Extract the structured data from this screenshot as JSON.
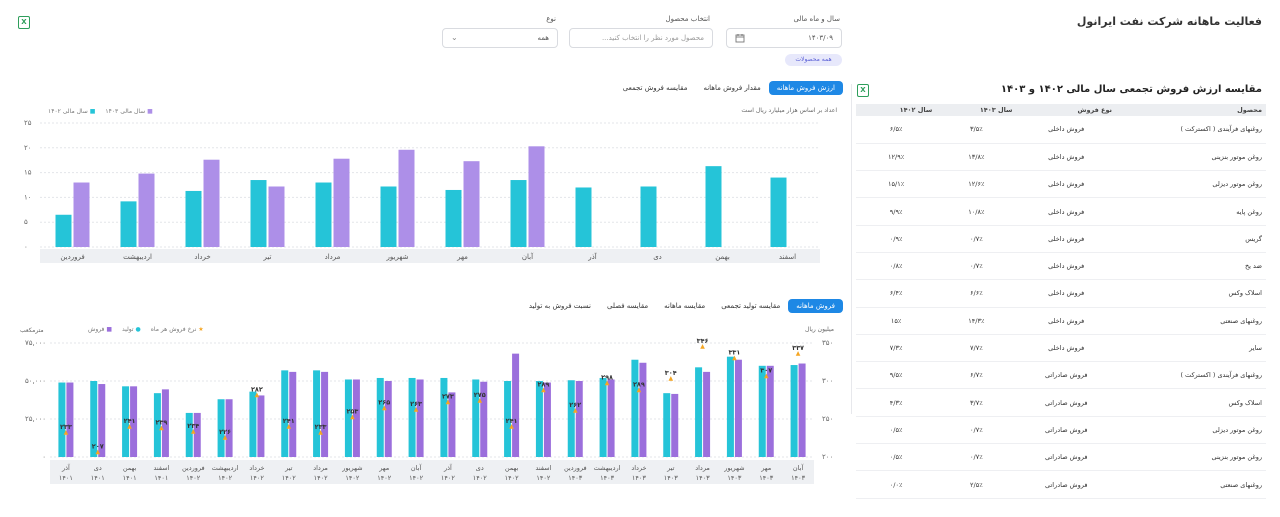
{
  "header": {
    "title": "فعالیت ماهانه شرکت نفت ایرانول",
    "export_icon": "excel-icon"
  },
  "filters": {
    "period_label": "سال و ماه مالی",
    "period_value": "۱۴۰۳/۰۹",
    "product_label": "انتخاب محصول",
    "product_placeholder": "محصول مورد نظر را انتخاب کنید...",
    "type_label": "نوع",
    "type_value": "همه",
    "chip": "همه محصولات"
  },
  "chart1": {
    "tabs": [
      "ارزش فروش ماهانه",
      "مقدار فروش ماهانه",
      "مقایسه فروش تجمعی"
    ],
    "unit": "اعداد بر اساس هزار میلیارد ریال است",
    "legend": [
      "سال مالی ۱۴۰۳",
      "سال مالی ۱۴۰۲"
    ],
    "colors": {
      "y1403": "#ad8fe8",
      "y1402": "#25c4d8"
    }
  },
  "chart2": {
    "tabs": [
      "فروش ماهانه",
      "مقایسه تولید تجمعی",
      "مقایسه ماهانه",
      "مقایسه فصلی",
      "نسبت فروش به تولید"
    ],
    "left_unit": "مترمکعب",
    "right_unit": "میلیون ریال",
    "legend": [
      "فروش",
      "تولید",
      "نرخ فروش هر ماه"
    ],
    "colors": {
      "sales": "#9b6fdc",
      "production": "#25c4d8",
      "rate": "#f5a623"
    }
  },
  "chart_data": [
    {
      "type": "bar",
      "title": "",
      "categories": [
        "اسفند",
        "بهمن",
        "دی",
        "آذر",
        "آبان",
        "مهر",
        "شهریور",
        "مرداد",
        "تیر",
        "خرداد",
        "اردیبهشت",
        "فروردین"
      ],
      "series": [
        {
          "name": "سال مالی ۱۴۰۲",
          "values": [
            14,
            16.3,
            12.2,
            12,
            13.5,
            11.5,
            12.2,
            13,
            13.5,
            11.3,
            9.2,
            6.5
          ]
        },
        {
          "name": "سال مالی ۱۴۰۳",
          "values": [
            null,
            null,
            null,
            null,
            20.3,
            17.3,
            19.6,
            17.8,
            12.2,
            17.6,
            14.8,
            13
          ]
        }
      ],
      "ylim": [
        0,
        25
      ],
      "yticks": [
        0,
        5,
        10,
        15,
        20,
        25
      ],
      "ytick_labels": [
        "۰",
        "۵",
        "۱۰",
        "۱۵",
        "۲۰",
        "۲۵"
      ]
    },
    {
      "type": "bar",
      "title": "",
      "categories": [
        "آذر ۱۴۰۱",
        "دی ۱۴۰۱",
        "بهمن ۱۴۰۱",
        "اسفند ۱۴۰۱",
        "فروردین ۱۴۰۲",
        "اردیبهشت ۱۴۰۲",
        "خرداد ۱۴۰۲",
        "تیر ۱۴۰۲",
        "مرداد ۱۴۰۲",
        "شهریور ۱۴۰۲",
        "مهر ۱۴۰۲",
        "آبان ۱۴۰۲",
        "آذر ۱۴۰۲",
        "دی ۱۴۰۲",
        "بهمن ۱۴۰۲",
        "اسفند ۱۴۰۲",
        "فروردین ۱۴۰۳",
        "اردیبهشت ۱۴۰۳",
        "خرداد ۱۴۰۳",
        "تیر ۱۴۰۳",
        "مرداد ۱۴۰۳",
        "شهریور ۱۴۰۳",
        "مهر ۱۴۰۳",
        "آبان ۱۴۰۳"
      ],
      "category_month": [
        "آذر",
        "دی",
        "بهمن",
        "اسفند",
        "فروردین",
        "اردیبهشت",
        "خرداد",
        "تیر",
        "مرداد",
        "شهریور",
        "مهر",
        "آبان",
        "آذر",
        "دی",
        "بهمن",
        "اسفند",
        "فروردین",
        "اردیبهشت",
        "خرداد",
        "تیر",
        "مرداد",
        "شهریور",
        "مهر",
        "آبان"
      ],
      "category_year": [
        "۱۴۰۱",
        "۱۴۰۱",
        "۱۴۰۱",
        "۱۴۰۱",
        "۱۴۰۲",
        "۱۴۰۲",
        "۱۴۰۲",
        "۱۴۰۲",
        "۱۴۰۲",
        "۱۴۰۲",
        "۱۴۰۲",
        "۱۴۰۲",
        "۱۴۰۲",
        "۱۴۰۲",
        "۱۴۰۲",
        "۱۴۰۲",
        "۱۴۰۳",
        "۱۴۰۳",
        "۱۴۰۳",
        "۱۴۰۳",
        "۱۴۰۳",
        "۱۴۰۳",
        "۱۴۰۳",
        "۱۴۰۳"
      ],
      "series": [
        {
          "name": "تولید",
          "values": [
            49000,
            50000,
            46500,
            42000,
            29000,
            38000,
            43000,
            57000,
            57000,
            51000,
            52000,
            52000,
            52000,
            51000,
            50000,
            50000,
            50500,
            52000,
            64000,
            42000,
            59000,
            66000,
            60000,
            60500
          ]
        },
        {
          "name": "فروش",
          "values": [
            49000,
            48000,
            46500,
            44500,
            29000,
            38000,
            40500,
            56000,
            56000,
            51000,
            50000,
            51000,
            42500,
            49500,
            68000,
            49000,
            50000,
            51000,
            62000,
            41500,
            56000,
            64000,
            60000,
            61500
          ]
        },
        {
          "name": "نرخ فروش هر ماه",
          "values": [
            233,
            207,
            241,
            239,
            234,
            226,
            282,
            241,
            233,
            253,
            265,
            263,
            273,
            275,
            241,
            289,
            262,
            298,
            289,
            304,
            346,
            331,
            307,
            337
          ]
        }
      ],
      "rate_labels": [
        "۲۳۳",
        "۲۰۷",
        "۲۴۱",
        "۲۳۹",
        "۲۳۴",
        "۲۲۶",
        "۲۸۲",
        "۲۴۱",
        "۲۳۳",
        "۲۵۳",
        "۲۶۵",
        "۲۶۳",
        "۲۷۳",
        "۲۷۵",
        "۲۴۱",
        "۲۸۹",
        "۲۶۲",
        "۲۹۸",
        "۲۸۹",
        "۳۰۴",
        "۳۴۶",
        "۳۳۱",
        "۳۰۷",
        "۳۳۷"
      ],
      "ylim": [
        0,
        75000
      ],
      "yticks": [
        0,
        25000,
        50000,
        75000
      ],
      "ytick_labels": [
        "۰",
        "۲۵,۰۰۰",
        "۵۰,۰۰۰",
        "۷۵,۰۰۰"
      ],
      "y2lim": [
        200,
        350
      ],
      "y2ticks": [
        200,
        250,
        300,
        350
      ],
      "y2tick_labels": [
        "۲۰۰",
        "۲۵۰",
        "۳۰۰",
        "۳۵۰"
      ]
    }
  ],
  "table": {
    "title": "مقایسه ارزش فروش تجمعی سال مالی ۱۴۰۲ و ۱۴۰۳",
    "headers": [
      "محصول",
      "نوع فروش",
      "سال ۱۴۰۳",
      "سال ۱۴۰۲"
    ],
    "rows": [
      [
        "روغنهای فرآیندی ( اکسترکت )",
        "فروش داخلی",
        "۳/۵٪",
        "۶/۵٪"
      ],
      [
        "روغن موتور بنزینی",
        "فروش داخلی",
        "۱۳/۸٪",
        "۱۲/۹٪"
      ],
      [
        "روغن موتور دیزلی",
        "فروش داخلی",
        "۱۲/۶٪",
        "۱۵/۱٪"
      ],
      [
        "روغن پایه",
        "فروش داخلی",
        "۱۰/۸٪",
        "۹/۹٪"
      ],
      [
        "گریس",
        "فروش داخلی",
        "۰/۷٪",
        "۰/۹٪"
      ],
      [
        "ضد یخ",
        "فروش داخلی",
        "۰/۷٪",
        "۰/۸٪"
      ],
      [
        "اسلاک وکس",
        "فروش داخلی",
        "۶/۶٪",
        "۶/۴٪"
      ],
      [
        "روغنهای صنعتی",
        "فروش داخلی",
        "۱۴/۳٪",
        "۱۵٪"
      ],
      [
        "سایر",
        "فروش داخلی",
        "۷/۷٪",
        "۷/۳٪"
      ],
      [
        "روغنهای فرآیندی ( اکسترکت )",
        "فروش صادراتی",
        "۶/۷٪",
        "۹/۵٪"
      ],
      [
        "اسلاک وکس",
        "فروش صادراتی",
        "۳/۷٪",
        "۴/۳٪"
      ],
      [
        "روغن موتور دیزلی",
        "فروش صادراتی",
        "۰/۷٪",
        "۰/۵٪"
      ],
      [
        "روغن موتور بنزینی",
        "فروش صادراتی",
        "۰/۷٪",
        "۰/۵٪"
      ],
      [
        "روغنهای صنعتی",
        "فروش صادراتی",
        "۲/۵٪",
        "۰/۰٪"
      ]
    ]
  }
}
